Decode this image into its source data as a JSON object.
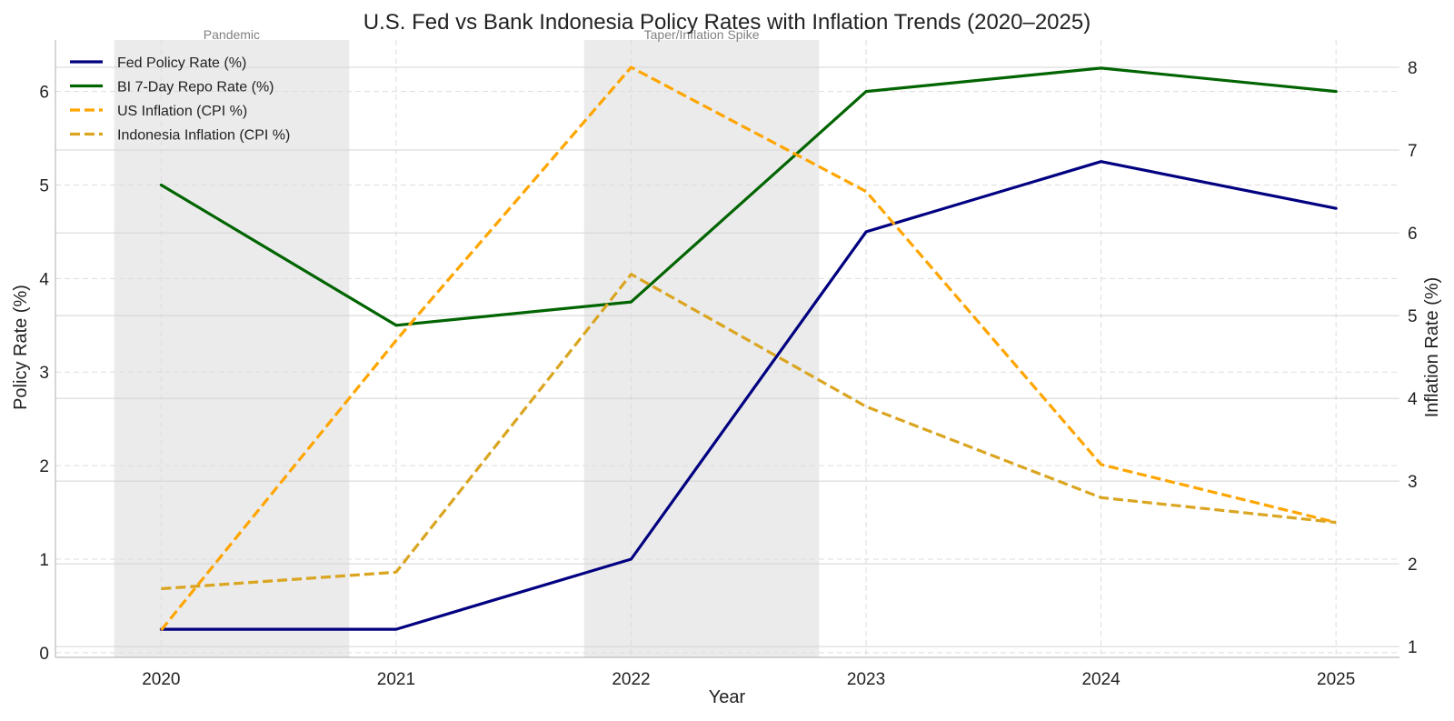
{
  "chart_data": {
    "type": "line",
    "title": "U.S. Fed vs Bank Indonesia Policy Rates with Inflation Trends (2020–2025)",
    "xlabel": "Year",
    "ylabel_left": "Policy Rate (%)",
    "ylabel_right": "Inflation Rate (%)",
    "x": [
      "2020",
      "2021",
      "2022",
      "2023",
      "2024",
      "2025"
    ],
    "xlim": [
      2019.55,
      2025.27
    ],
    "ylim_left": [
      -0.05,
      6.55
    ],
    "ylim_right": [
      0.87,
      8.33
    ],
    "yticks_left": [
      "0",
      "1",
      "2",
      "3",
      "4",
      "5",
      "6"
    ],
    "yticks_right": [
      "1",
      "2",
      "3",
      "4",
      "5",
      "6",
      "7",
      "8"
    ],
    "grid": true,
    "legend_position": "upper left",
    "series": [
      {
        "name": "Fed Policy Rate (%)",
        "axis": "left",
        "style": "solid",
        "color": "#000080",
        "values": [
          0.25,
          0.25,
          1.0,
          4.5,
          5.25,
          4.75
        ]
      },
      {
        "name": "BI 7-Day Repo Rate (%)",
        "axis": "left",
        "style": "solid",
        "color": "#006400",
        "values": [
          5.0,
          3.5,
          3.75,
          6.0,
          6.25,
          6.0
        ]
      },
      {
        "name": "US Inflation (CPI %)",
        "axis": "right",
        "style": "dashed",
        "color": "#FFA500",
        "values": [
          1.2,
          4.7,
          8.0,
          6.5,
          3.2,
          2.5
        ]
      },
      {
        "name": "Indonesia Inflation (CPI %)",
        "axis": "right",
        "style": "dashed",
        "color": "#DAA520",
        "values": [
          1.7,
          1.9,
          5.5,
          3.9,
          2.8,
          2.5
        ]
      }
    ],
    "shaded_periods": [
      {
        "label": "Pandemic",
        "start": 2019.8,
        "end": 2020.8
      },
      {
        "label": "Taper/Inflation Spike",
        "start": 2021.8,
        "end": 2022.8
      }
    ]
  }
}
